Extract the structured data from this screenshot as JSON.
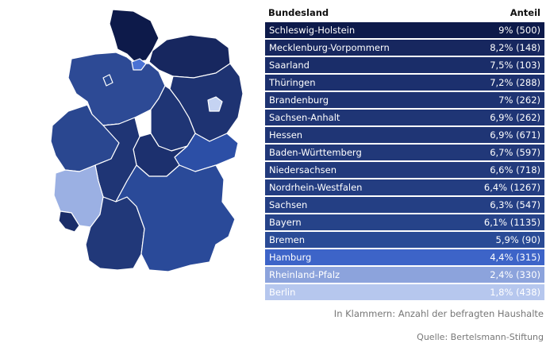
{
  "chart_data": {
    "type": "table",
    "columns": [
      "Bundesland",
      "Anteil"
    ],
    "rows": [
      {
        "name": "Schleswig-Holstein",
        "value": 9.0,
        "label": "9% (500)",
        "color": "#0d1a4a"
      },
      {
        "name": "Mecklenburg-Vorpommern",
        "value": 8.2,
        "label": "8,2% (148)",
        "color": "#17275f"
      },
      {
        "name": "Saarland",
        "value": 7.5,
        "label": "7,5% (103)",
        "color": "#1a2d69"
      },
      {
        "name": "Thüringen",
        "value": 7.2,
        "label": "7,2% (288)",
        "color": "#1c306e"
      },
      {
        "name": "Brandenburg",
        "value": 7.0,
        "label": "7% (262)",
        "color": "#1e3372"
      },
      {
        "name": "Sachsen-Anhalt",
        "value": 6.9,
        "label": "6,9% (262)",
        "color": "#1f3575"
      },
      {
        "name": "Hessen",
        "value": 6.9,
        "label": "6,9% (671)",
        "color": "#1f3575"
      },
      {
        "name": "Baden-Württemberg",
        "value": 6.7,
        "label": "6,7% (597)",
        "color": "#213879"
      },
      {
        "name": "Niedersachsen",
        "value": 6.6,
        "label": "6,6% (718)",
        "color": "#223a7c"
      },
      {
        "name": "Nordrhein-Westfalen",
        "value": 6.4,
        "label": "6,4% (1267)",
        "color": "#233d81"
      },
      {
        "name": "Sachsen",
        "value": 6.3,
        "label": "6,3% (547)",
        "color": "#243f84"
      },
      {
        "name": "Bayern",
        "value": 6.1,
        "label": "6,1% (1135)",
        "color": "#264389"
      },
      {
        "name": "Bremen",
        "value": 5.9,
        "label": "5,9% (90)",
        "color": "#2a4b96"
      },
      {
        "name": "Hamburg",
        "value": 4.4,
        "label": "4,4% (315)",
        "color": "#3d64c8"
      },
      {
        "name": "Rheinland-Pfalz",
        "value": 2.4,
        "label": "2,4% (330)",
        "color": "#8ca3dc"
      },
      {
        "name": "Berlin",
        "value": 1.8,
        "label": "1,8% (438)",
        "color": "#b6c7ee"
      }
    ],
    "note": "In Klammern: Anzahl der befragten Haushalte",
    "source": "Quelle: Bertelsmann-Stiftung"
  },
  "map_colors": {
    "Schleswig-Holstein": "#0d1a4a",
    "Mecklenburg-Vorpommern": "#17275f",
    "Saarland": "#1a2d69",
    "Thueringen": "#1c306e",
    "Brandenburg": "#1e3372",
    "Sachsen-Anhalt": "#1f3575",
    "Hessen": "#1f3575",
    "Baden-Wuerttemberg": "#213879",
    "Niedersachsen": "#2d4a95",
    "Nordrhein-Westfalen": "#2a4790",
    "Sachsen": "#2c4fa6",
    "Bayern": "#2a4a99",
    "Bremen": "#2a4b96",
    "Hamburg": "#4a72d4",
    "Rheinland-Pfalz": "#9bb0e3",
    "Berlin": "#c5d3f2"
  }
}
